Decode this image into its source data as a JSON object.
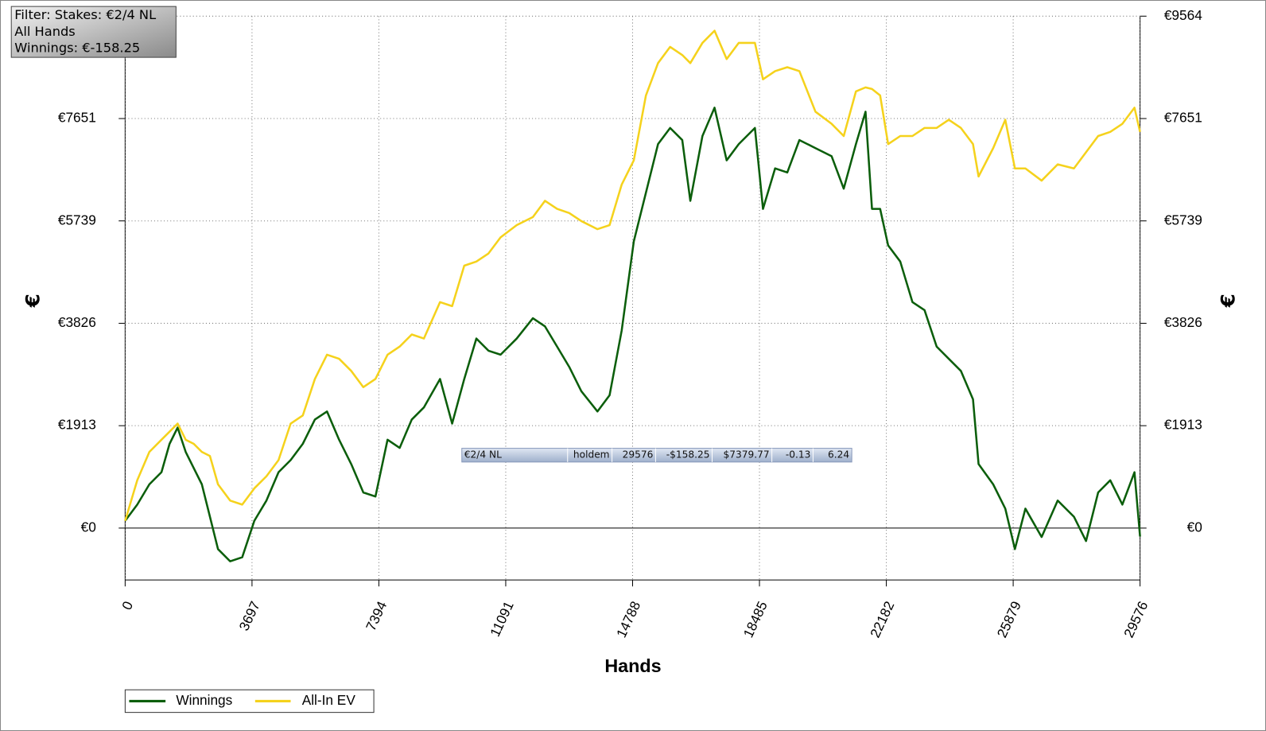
{
  "chart_data": {
    "type": "line",
    "info_box": [
      "Filter: Stakes: €2/4 NL",
      "All Hands",
      "Winnings: €-158.25"
    ],
    "summary_row": [
      "€2/4 NL",
      "holdem",
      "29576",
      "-$158.25",
      "$7379.77",
      "-0.13",
      "6.24"
    ],
    "x_label": "Hands",
    "y_label": "€",
    "xlim": [
      0,
      29576
    ],
    "xticks": [
      0,
      3697,
      7394,
      11091,
      14788,
      18485,
      22182,
      25879,
      29576
    ],
    "ylim": [
      -969,
      9564
    ],
    "yticks": [
      {
        "value": 0,
        "label": "€0"
      },
      {
        "value": 1913,
        "label": "€1913"
      },
      {
        "value": 3826,
        "label": "€3826"
      },
      {
        "value": 5739,
        "label": "€5739"
      },
      {
        "value": 7651,
        "label": "€7651"
      },
      {
        "value": 9564,
        "label": "€9564"
      }
    ],
    "grid": true,
    "legend": "bottom-left",
    "x": [
      0,
      353,
      706,
      1059,
      1294,
      1529,
      1765,
      2000,
      2235,
      2471,
      2706,
      3059,
      3412,
      3765,
      4118,
      4471,
      4824,
      5177,
      5530,
      5883,
      6235,
      6588,
      6941,
      7294,
      7647,
      8000,
      8353,
      8706,
      9177,
      9530,
      9883,
      10236,
      10589,
      10941,
      11412,
      11883,
      12236,
      12589,
      12942,
      13294,
      13765,
      14118,
      14471,
      14824,
      15177,
      15530,
      15883,
      16236,
      16471,
      16824,
      17177,
      17529,
      17883,
      18353,
      18589,
      18942,
      19295,
      19648,
      20118,
      20589,
      20942,
      21295,
      21577,
      21765,
      22001,
      22236,
      22589,
      22942,
      23295,
      23648,
      24001,
      24354,
      24707,
      24871,
      25295,
      25648,
      25930,
      26236,
      26707,
      27177,
      27648,
      28001,
      28354,
      28707,
      29060,
      29413,
      29576
    ],
    "series": [
      {
        "name": "Winnings",
        "color": "#0b5e0b",
        "values": [
          136,
          439,
          817,
          1044,
          1574,
          1877,
          1423,
          1120,
          817,
          212,
          -393,
          -620,
          -545,
          136,
          515,
          1044,
          1271,
          1574,
          2028,
          2179,
          1650,
          1196,
          666,
          590,
          1650,
          1498,
          2028,
          2255,
          2785,
          1952,
          2785,
          3541,
          3314,
          3239,
          3541,
          3920,
          3768,
          3390,
          3012,
          2558,
          2179,
          2482,
          3693,
          5357,
          6265,
          7174,
          7476,
          7249,
          6114,
          7325,
          7855,
          6871,
          7174,
          7476,
          5963,
          6719,
          6644,
          7249,
          7098,
          6947,
          6341,
          7174,
          7779,
          5963,
          5963,
          5282,
          4979,
          4222,
          4071,
          3390,
          3163,
          2936,
          2406,
          1196,
          817,
          363,
          -393,
          363,
          -166,
          515,
          212,
          -242,
          666,
          893,
          439,
          1044,
          -158.25
        ]
      },
      {
        "name": "All-In EV",
        "color": "#f5d21c",
        "values": [
          136,
          893,
          1423,
          1650,
          1801,
          1952,
          1650,
          1574,
          1423,
          1347,
          817,
          515,
          439,
          742,
          969,
          1271,
          1952,
          2104,
          2785,
          3239,
          3163,
          2936,
          2633,
          2785,
          3239,
          3390,
          3617,
          3541,
          4222,
          4147,
          4903,
          4979,
          5130,
          5433,
          5660,
          5811,
          6114,
          5963,
          5887,
          5736,
          5584,
          5660,
          6417,
          6871,
          8082,
          8687,
          8990,
          8838,
          8687,
          9065,
          9292,
          8763,
          9065,
          9065,
          8384,
          8536,
          8611,
          8536,
          7779,
          7552,
          7325,
          8157,
          8233,
          8203,
          8082,
          7174,
          7325,
          7325,
          7476,
          7476,
          7628,
          7476,
          7174,
          6568,
          7098,
          7628,
          6719,
          6719,
          6492,
          6795,
          6719,
          7022,
          7325,
          7401,
          7552,
          7855,
          7401
        ]
      }
    ]
  }
}
